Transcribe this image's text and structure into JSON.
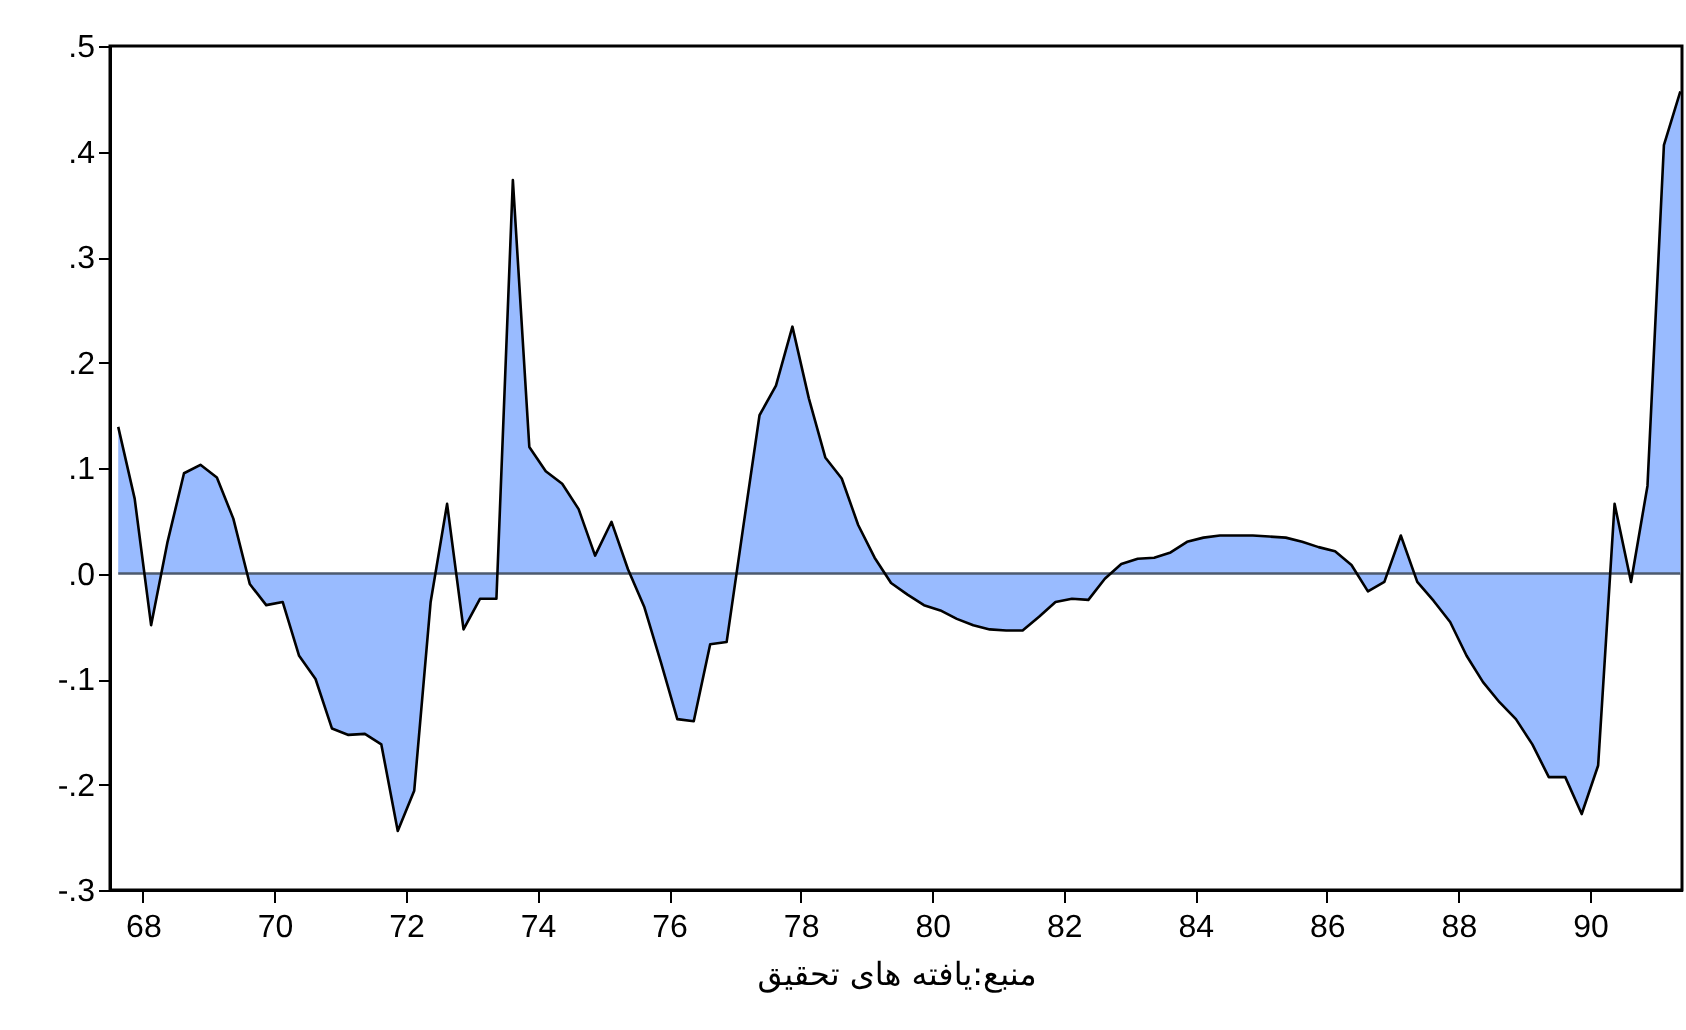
{
  "chart_data": {
    "type": "area",
    "color": "#99bbff",
    "x": [
      67.625,
      67.875,
      68.125,
      68.375,
      68.625,
      68.875,
      69.125,
      69.375,
      69.625,
      69.875,
      70.125,
      70.375,
      70.625,
      70.875,
      71.125,
      71.375,
      71.625,
      71.875,
      72.125,
      72.375,
      72.625,
      72.875,
      73.125,
      73.375,
      73.625,
      73.875,
      74.125,
      74.375,
      74.625,
      74.875,
      75.125,
      75.375,
      75.625,
      75.875,
      76.125,
      76.375,
      76.625,
      76.875,
      77.125,
      77.375,
      77.625,
      77.875,
      78.125,
      78.375,
      78.625,
      78.875,
      79.125,
      79.375,
      79.625,
      79.875,
      80.125,
      80.375,
      80.625,
      80.875,
      81.125,
      81.375,
      81.625,
      81.875,
      82.125,
      82.375,
      82.625,
      82.875,
      83.125,
      83.375,
      83.625,
      83.875,
      84.125,
      84.375,
      84.625,
      84.875,
      85.125,
      85.375,
      85.625,
      85.875,
      86.125,
      86.375,
      86.625,
      86.875,
      87.125,
      87.375,
      87.625,
      87.875,
      88.125,
      88.375,
      88.625,
      88.875,
      89.125,
      89.375,
      89.625,
      89.875,
      90.125,
      90.375,
      90.625,
      90.875,
      91.125,
      91.375
    ],
    "values": [
      0.139,
      0.071,
      -0.049,
      0.03,
      0.095,
      0.103,
      0.091,
      0.052,
      -0.01,
      -0.03,
      -0.027,
      -0.078,
      -0.1,
      -0.147,
      -0.153,
      -0.152,
      -0.162,
      -0.244,
      -0.206,
      -0.027,
      0.066,
      -0.053,
      -0.024,
      -0.024,
      0.373,
      0.12,
      0.097,
      0.085,
      0.061,
      0.017,
      0.049,
      0.004,
      -0.032,
      -0.084,
      -0.138,
      -0.14,
      -0.067,
      -0.065,
      0.043,
      0.15,
      0.178,
      0.234,
      0.166,
      0.11,
      0.09,
      0.046,
      0.015,
      -0.009,
      -0.02,
      -0.03,
      -0.035,
      -0.043,
      -0.049,
      -0.053,
      -0.054,
      -0.054,
      -0.041,
      -0.027,
      -0.024,
      -0.025,
      -0.005,
      0.009,
      0.014,
      0.015,
      0.02,
      0.03,
      0.034,
      0.036,
      0.036,
      0.036,
      0.035,
      0.034,
      0.03,
      0.025,
      0.021,
      0.008,
      -0.017,
      -0.008,
      0.036,
      -0.008,
      -0.026,
      -0.046,
      -0.078,
      -0.103,
      -0.122,
      -0.138,
      -0.162,
      -0.193,
      -0.193,
      -0.228,
      -0.182,
      0.066,
      -0.008,
      0.083,
      0.406,
      0.457
    ],
    "xlim": [
      67.5,
      91.4
    ],
    "xticks": [
      68,
      70,
      72,
      74,
      76,
      78,
      80,
      82,
      84,
      86,
      88,
      90
    ],
    "ylim": [
      -0.3,
      0.5
    ],
    "yticks": [
      {
        "value": -0.3,
        "label": "-.3"
      },
      {
        "value": -0.2,
        "label": "-.2"
      },
      {
        "value": -0.1,
        "label": "-.1"
      },
      {
        "value": 0,
        "label": ".0"
      },
      {
        "value": 0.1,
        "label": ".1"
      },
      {
        "value": 0.2,
        "label": ".2"
      },
      {
        "value": 0.3,
        "label": ".3"
      },
      {
        "value": 0.4,
        "label": ".4"
      },
      {
        "value": 0.5,
        "label": ".5"
      }
    ],
    "ref_lines": [
      {
        "axis": "y",
        "value": 0,
        "color": "#4d5a6e"
      }
    ],
    "grid": false,
    "annotations": [
      "منبع:یافته های تحقیق"
    ]
  }
}
